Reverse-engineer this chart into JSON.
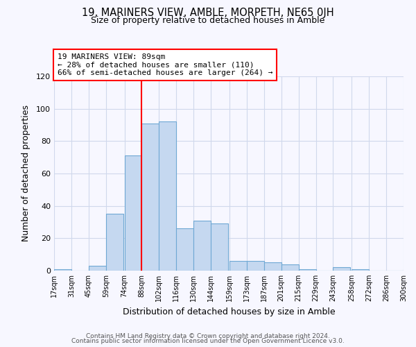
{
  "title": "19, MARINERS VIEW, AMBLE, MORPETH, NE65 0JH",
  "subtitle": "Size of property relative to detached houses in Amble",
  "xlabel": "Distribution of detached houses by size in Amble",
  "ylabel": "Number of detached properties",
  "bin_labels": [
    "17sqm",
    "31sqm",
    "45sqm",
    "59sqm",
    "74sqm",
    "88sqm",
    "102sqm",
    "116sqm",
    "130sqm",
    "144sqm",
    "159sqm",
    "173sqm",
    "187sqm",
    "201sqm",
    "215sqm",
    "229sqm",
    "243sqm",
    "258sqm",
    "272sqm",
    "286sqm",
    "300sqm"
  ],
  "bin_edges": [
    17,
    31,
    45,
    59,
    74,
    88,
    102,
    116,
    130,
    144,
    159,
    173,
    187,
    201,
    215,
    229,
    243,
    258,
    272,
    286,
    300
  ],
  "counts": [
    1,
    0,
    3,
    35,
    71,
    91,
    92,
    26,
    31,
    29,
    6,
    6,
    5,
    4,
    1,
    0,
    2,
    1,
    0,
    0,
    1
  ],
  "bar_color": "#c5d8f0",
  "bar_edge_color": "#6fa8d4",
  "vline_x": 88,
  "vline_color": "red",
  "annotation_title": "19 MARINERS VIEW: 89sqm",
  "annotation_line1": "← 28% of detached houses are smaller (110)",
  "annotation_line2": "66% of semi-detached houses are larger (264) →",
  "annotation_box_color": "white",
  "annotation_box_edge": "red",
  "footer1": "Contains HM Land Registry data © Crown copyright and database right 2024.",
  "footer2": "Contains public sector information licensed under the Open Government Licence v3.0.",
  "ylim": [
    0,
    120
  ],
  "background_color": "#f7f7ff",
  "grid_color": "#d0d8ec"
}
